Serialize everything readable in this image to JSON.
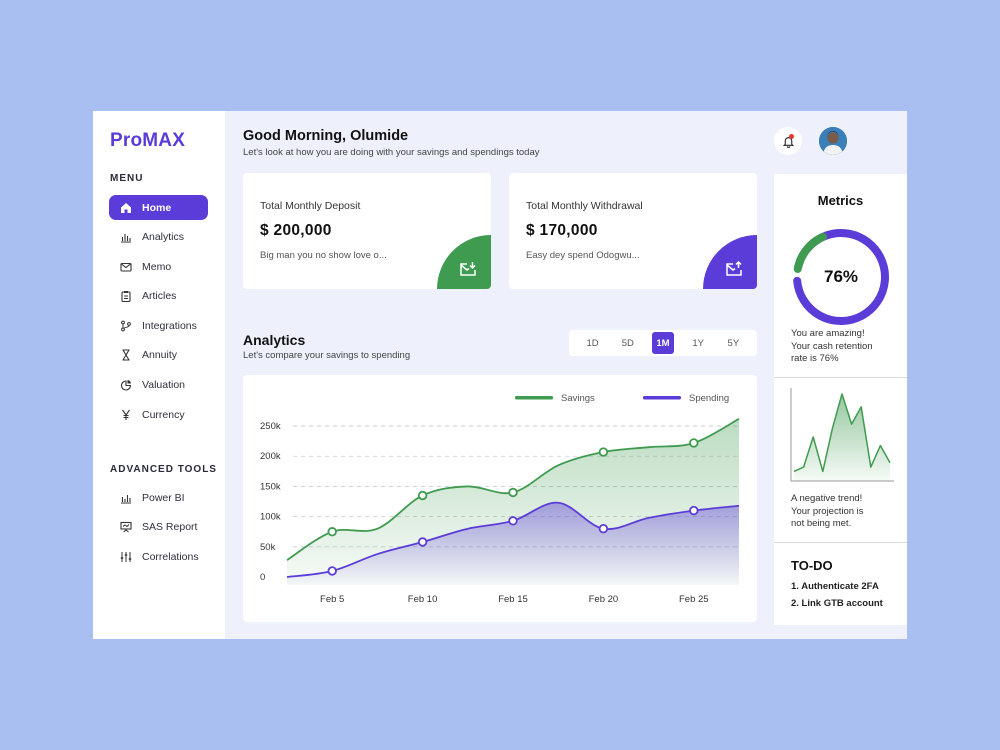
{
  "app": {
    "logo": "ProMAX"
  },
  "sidebar": {
    "menu_title": "MENU",
    "items": [
      {
        "label": "Home",
        "icon": "home-icon",
        "active": true
      },
      {
        "label": "Analytics",
        "icon": "bar-chart-icon"
      },
      {
        "label": "Memo",
        "icon": "mail-icon"
      },
      {
        "label": "Articles",
        "icon": "clipboard-icon"
      },
      {
        "label": "Integrations",
        "icon": "git-branch-icon"
      },
      {
        "label": "Annuity",
        "icon": "hourglass-icon"
      },
      {
        "label": "Valuation",
        "icon": "pie-icon"
      },
      {
        "label": "Currency",
        "icon": "yen-icon"
      }
    ],
    "tools_title": "ADVANCED TOOLS",
    "tools": [
      {
        "label": "Power BI",
        "icon": "bar-chart-icon"
      },
      {
        "label": "SAS Report",
        "icon": "presentation-icon"
      },
      {
        "label": "Correlations",
        "icon": "sliders-icon"
      }
    ]
  },
  "header": {
    "greeting": "Good Morning, Olumide",
    "subtitle": "Let's look at how you are doing with your savings and spendings today"
  },
  "cards": {
    "deposit": {
      "title": "Total Monthly Deposit",
      "amount": "$ 200,000",
      "note": "Big man you no show love o...",
      "color": "#3f9b4f",
      "icon": "download-mail-icon"
    },
    "withdrawal": {
      "title": "Total Monthly Withdrawal",
      "amount": "$ 170,000",
      "note": "Easy dey spend Odogwu...",
      "color": "#5b3cd8",
      "icon": "upload-mail-icon"
    }
  },
  "analytics": {
    "title": "Analytics",
    "subtitle": "Let's compare your savings to spending",
    "ranges": [
      "1D",
      "5D",
      "1M",
      "1Y",
      "5Y"
    ],
    "active_range": "1M"
  },
  "chart_data": {
    "type": "area",
    "legend_position": "top-right",
    "grid": true,
    "x": [
      "Feb 3",
      "Feb 5",
      "Feb 7",
      "Feb 10",
      "Feb 12",
      "Feb 15",
      "Feb 17",
      "Feb 20",
      "Feb 23",
      "Feb 25",
      "Feb 28"
    ],
    "xticks": [
      "Feb 5",
      "Feb 10",
      "Feb 15",
      "Feb 20",
      "Feb 25"
    ],
    "yticks": [
      "0",
      "50k",
      "100k",
      "150k",
      "200k",
      "250k"
    ],
    "ylim": [
      0,
      265000
    ],
    "series": [
      {
        "name": "Savings",
        "color": "#3f9b4f",
        "values": [
          28000,
          75000,
          80000,
          135000,
          150000,
          140000,
          185000,
          207000,
          215000,
          222000,
          262000
        ],
        "markers": [
          1,
          3,
          5,
          7,
          9
        ]
      },
      {
        "name": "Spending",
        "color": "#5b3cd8",
        "values": [
          0,
          10000,
          38000,
          58000,
          80000,
          93000,
          123000,
          80000,
          98000,
          110000,
          118000
        ],
        "markers": [
          1,
          3,
          5,
          7,
          9
        ]
      }
    ]
  },
  "metrics": {
    "title": "Metrics",
    "percent": 76,
    "percent_label": "76%",
    "gauge_color": "#5b3cd8",
    "gauge_accent": "#3f9b4f",
    "line1": "You are amazing!",
    "line2": "Your cash retention",
    "line3": "rate is 76%",
    "trend_values": [
      2,
      3,
      10,
      2,
      12,
      20,
      13,
      17,
      3,
      8,
      4
    ],
    "trend_color": "#3f9b4f",
    "trend1": "A negative trend!",
    "trend2": "Your projection is",
    "trend3": "not being met."
  },
  "todo": {
    "title": "TO-DO",
    "items": [
      "1. Authenticate 2FA",
      "2. Link GTB account"
    ]
  }
}
